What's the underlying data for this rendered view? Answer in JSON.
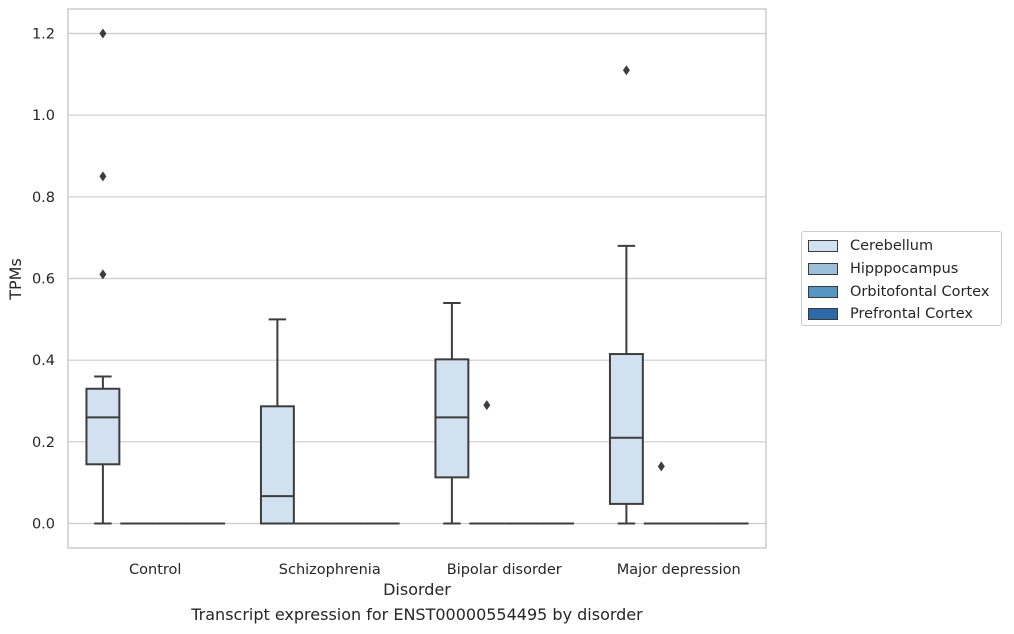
{
  "caption": "Transcript expression for ENST00000554495 by disorder",
  "chart_data": {
    "type": "box",
    "title": "",
    "xlabel": "Disorder",
    "ylabel": "TPMs",
    "ylim": [
      -0.06,
      1.26
    ],
    "yticks": [
      0.0,
      0.2,
      0.4,
      0.6,
      0.8,
      1.0,
      1.2
    ],
    "ytick_labels": [
      "0.0",
      "0.2",
      "0.4",
      "0.6",
      "0.8",
      "1.0",
      "1.2"
    ],
    "grid": "horizontal",
    "legend_position": "right",
    "categories": [
      "Control",
      "Schizophrenia",
      "Bipolar disorder",
      "Major depression"
    ],
    "series": [
      {
        "name": "Cerebellum",
        "color": "#d1e1f0",
        "boxes": [
          {
            "whisker_low": 0.0,
            "q1": 0.145,
            "median": 0.26,
            "q3": 0.33,
            "whisker_high": 0.36,
            "outliers": [
              0.61,
              0.85,
              1.2
            ]
          },
          {
            "whisker_low": 0.0,
            "q1": 0.0,
            "median": 0.067,
            "q3": 0.287,
            "whisker_high": 0.5,
            "outliers": []
          },
          {
            "whisker_low": 0.0,
            "q1": 0.113,
            "median": 0.26,
            "q3": 0.402,
            "whisker_high": 0.54,
            "outliers": []
          },
          {
            "whisker_low": 0.0,
            "q1": 0.048,
            "median": 0.21,
            "q3": 0.415,
            "whisker_high": 0.68,
            "outliers": [
              1.11
            ]
          }
        ]
      },
      {
        "name": "Hipppocampus",
        "color": "#9ac0da",
        "boxes": [
          {
            "whisker_low": 0.0,
            "q1": 0.0,
            "median": 0.0,
            "q3": 0.0,
            "whisker_high": 0.0,
            "outliers": []
          },
          {
            "whisker_low": 0.0,
            "q1": 0.0,
            "median": 0.0,
            "q3": 0.0,
            "whisker_high": 0.0,
            "outliers": []
          },
          {
            "whisker_low": 0.0,
            "q1": 0.0,
            "median": 0.0,
            "q3": 0.0,
            "whisker_high": 0.0,
            "outliers": [
              0.29
            ]
          },
          {
            "whisker_low": 0.0,
            "q1": 0.0,
            "median": 0.0,
            "q3": 0.0,
            "whisker_high": 0.0,
            "outliers": [
              0.14
            ]
          }
        ]
      },
      {
        "name": "Orbitofontal Cortex",
        "color": "#5696c6",
        "boxes": [
          {
            "whisker_low": 0.0,
            "q1": 0.0,
            "median": 0.0,
            "q3": 0.0,
            "whisker_high": 0.0,
            "outliers": []
          },
          {
            "whisker_low": 0.0,
            "q1": 0.0,
            "median": 0.0,
            "q3": 0.0,
            "whisker_high": 0.0,
            "outliers": []
          },
          {
            "whisker_low": 0.0,
            "q1": 0.0,
            "median": 0.0,
            "q3": 0.0,
            "whisker_high": 0.0,
            "outliers": []
          },
          {
            "whisker_low": 0.0,
            "q1": 0.0,
            "median": 0.0,
            "q3": 0.0,
            "whisker_high": 0.0,
            "outliers": []
          }
        ]
      },
      {
        "name": "Prefrontal Cortex",
        "color": "#2b6aa6",
        "boxes": [
          {
            "whisker_low": 0.0,
            "q1": 0.0,
            "median": 0.0,
            "q3": 0.0,
            "whisker_high": 0.0,
            "outliers": []
          },
          {
            "whisker_low": 0.0,
            "q1": 0.0,
            "median": 0.0,
            "q3": 0.0,
            "whisker_high": 0.0,
            "outliers": []
          },
          {
            "whisker_low": 0.0,
            "q1": 0.0,
            "median": 0.0,
            "q3": 0.0,
            "whisker_high": 0.0,
            "outliers": []
          },
          {
            "whisker_low": 0.0,
            "q1": 0.0,
            "median": 0.0,
            "q3": 0.0,
            "whisker_high": 0.0,
            "outliers": []
          }
        ]
      }
    ]
  }
}
